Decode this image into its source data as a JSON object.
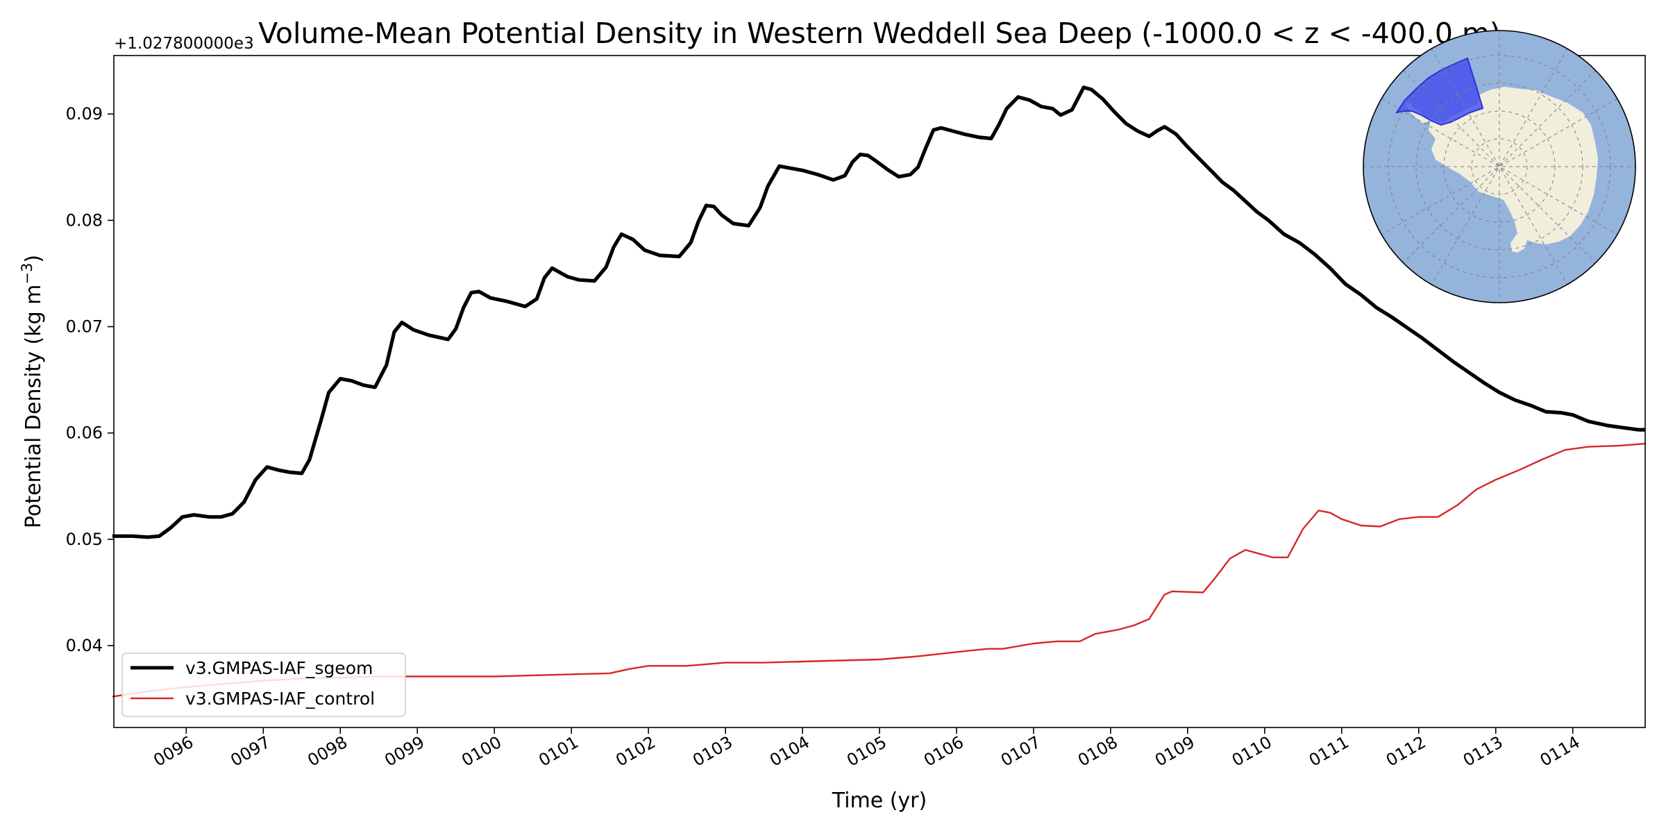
{
  "chart_data": {
    "type": "line",
    "title": "Volume-Mean Potential Density in Western Weddell Sea Deep (-1000.0 < z < -400.0 m)",
    "xlabel": "Time (yr)",
    "ylabel": "Potential Density (kg m",
    "ylabel_sup": "−3",
    "ylabel_close": ")",
    "offset_label": "+1.027800000e3",
    "xlim": [
      95.06,
      114.94
    ],
    "ylim": [
      0.0323,
      0.0955
    ],
    "xticks": [
      {
        "value": 96,
        "label": "0096"
      },
      {
        "value": 97,
        "label": "0097"
      },
      {
        "value": 98,
        "label": "0098"
      },
      {
        "value": 99,
        "label": "0099"
      },
      {
        "value": 100,
        "label": "0100"
      },
      {
        "value": 101,
        "label": "0101"
      },
      {
        "value": 102,
        "label": "0102"
      },
      {
        "value": 103,
        "label": "0103"
      },
      {
        "value": 104,
        "label": "0104"
      },
      {
        "value": 105,
        "label": "0105"
      },
      {
        "value": 106,
        "label": "0106"
      },
      {
        "value": 107,
        "label": "0107"
      },
      {
        "value": 108,
        "label": "0108"
      },
      {
        "value": 109,
        "label": "0109"
      },
      {
        "value": 110,
        "label": "0110"
      },
      {
        "value": 111,
        "label": "0111"
      },
      {
        "value": 112,
        "label": "0112"
      },
      {
        "value": 113,
        "label": "0113"
      },
      {
        "value": 114,
        "label": "0114"
      }
    ],
    "yticks": [
      {
        "value": 0.04,
        "label": "0.04"
      },
      {
        "value": 0.05,
        "label": "0.05"
      },
      {
        "value": 0.06,
        "label": "0.06"
      },
      {
        "value": 0.07,
        "label": "0.07"
      },
      {
        "value": 0.08,
        "label": "0.08"
      },
      {
        "value": 0.09,
        "label": "0.09"
      }
    ],
    "legend_position": "lower-left",
    "grid": false,
    "series": [
      {
        "name": "v3.GMPAS-IAF_sgeom",
        "color": "#000000",
        "x": [
          95.04,
          95.3,
          95.5,
          95.65,
          95.8,
          95.95,
          96.1,
          96.3,
          96.45,
          96.6,
          96.75,
          96.9,
          97.05,
          97.2,
          97.35,
          97.5,
          97.6,
          97.75,
          97.85,
          98.0,
          98.15,
          98.3,
          98.45,
          98.6,
          98.7,
          98.8,
          98.95,
          99.15,
          99.4,
          99.5,
          99.6,
          99.7,
          99.8,
          99.95,
          100.15,
          100.4,
          100.55,
          100.65,
          100.75,
          100.85,
          100.95,
          101.1,
          101.3,
          101.45,
          101.55,
          101.65,
          101.8,
          101.95,
          102.15,
          102.4,
          102.55,
          102.65,
          102.75,
          102.85,
          102.95,
          103.1,
          103.3,
          103.45,
          103.55,
          103.7,
          103.85,
          104.0,
          104.2,
          104.4,
          104.55,
          104.65,
          104.75,
          104.85,
          104.95,
          105.1,
          105.25,
          105.4,
          105.5,
          105.6,
          105.7,
          105.8,
          105.95,
          106.1,
          106.3,
          106.45,
          106.55,
          106.65,
          106.8,
          106.95,
          107.1,
          107.25,
          107.35,
          107.5,
          107.65,
          107.75,
          107.9,
          108.05,
          108.2,
          108.35,
          108.5,
          108.6,
          108.7,
          108.85,
          109.0,
          109.15,
          109.3,
          109.45,
          109.6,
          109.75,
          109.9,
          110.05,
          110.25,
          110.45,
          110.65,
          110.85,
          111.05,
          111.25,
          111.45,
          111.65,
          111.85,
          112.05,
          112.25,
          112.45,
          112.65,
          112.85,
          113.05,
          113.25,
          113.45,
          113.65,
          113.85,
          114.0,
          114.2,
          114.45,
          114.65,
          114.85,
          114.94
        ],
        "y": [
          0.0503,
          0.0503,
          0.0502,
          0.0503,
          0.0511,
          0.0521,
          0.0523,
          0.0521,
          0.0521,
          0.0524,
          0.0535,
          0.0556,
          0.0568,
          0.0565,
          0.0563,
          0.0562,
          0.0575,
          0.0612,
          0.0638,
          0.0651,
          0.0649,
          0.0645,
          0.0643,
          0.0664,
          0.0695,
          0.0704,
          0.0697,
          0.0692,
          0.0688,
          0.0698,
          0.0718,
          0.0732,
          0.0733,
          0.0727,
          0.0724,
          0.0719,
          0.0726,
          0.0746,
          0.0755,
          0.0751,
          0.0747,
          0.0744,
          0.0743,
          0.0756,
          0.0775,
          0.0787,
          0.0782,
          0.0772,
          0.0767,
          0.0766,
          0.0779,
          0.0799,
          0.0814,
          0.0813,
          0.0805,
          0.0797,
          0.0795,
          0.0812,
          0.0832,
          0.0851,
          0.0849,
          0.0847,
          0.0843,
          0.0838,
          0.0842,
          0.0855,
          0.0862,
          0.0861,
          0.0856,
          0.0848,
          0.0841,
          0.0843,
          0.085,
          0.0868,
          0.0885,
          0.0887,
          0.0884,
          0.0881,
          0.0878,
          0.0877,
          0.089,
          0.0905,
          0.0916,
          0.0913,
          0.0907,
          0.0905,
          0.0899,
          0.0904,
          0.0925,
          0.0923,
          0.0914,
          0.0902,
          0.0891,
          0.0884,
          0.0879,
          0.0884,
          0.0888,
          0.0881,
          0.0869,
          0.0858,
          0.0847,
          0.0836,
          0.0828,
          0.0818,
          0.0808,
          0.08,
          0.0787,
          0.0779,
          0.0768,
          0.0755,
          0.074,
          0.073,
          0.0718,
          0.0709,
          0.0699,
          0.0689,
          0.0678,
          0.0667,
          0.0657,
          0.0647,
          0.0638,
          0.0631,
          0.0626,
          0.062,
          0.0619,
          0.0617,
          0.0611,
          0.0607,
          0.0605,
          0.0603,
          0.0603
        ]
      },
      {
        "name": "v3.GMPAS-IAF_control",
        "color": "#d62728",
        "x": [
          95.04,
          95.5,
          96.0,
          96.5,
          97.0,
          97.5,
          98.0,
          98.5,
          99.0,
          99.5,
          100.0,
          100.5,
          101.0,
          101.5,
          101.75,
          102.0,
          102.5,
          103.0,
          103.5,
          104.0,
          104.5,
          105.0,
          105.5,
          106.0,
          106.4,
          106.6,
          107.0,
          107.3,
          107.6,
          107.8,
          108.1,
          108.3,
          108.5,
          108.7,
          108.8,
          109.2,
          109.35,
          109.55,
          109.75,
          110.1,
          110.3,
          110.5,
          110.7,
          110.85,
          111.0,
          111.25,
          111.5,
          111.75,
          112.0,
          112.25,
          112.5,
          112.75,
          113.0,
          113.3,
          113.6,
          113.9,
          114.2,
          114.6,
          114.94
        ],
        "y": [
          0.0352,
          0.0357,
          0.0361,
          0.0364,
          0.0367,
          0.0369,
          0.037,
          0.0371,
          0.0371,
          0.0371,
          0.0371,
          0.0372,
          0.0373,
          0.0374,
          0.0378,
          0.0381,
          0.0381,
          0.0384,
          0.0384,
          0.0385,
          0.0386,
          0.0387,
          0.039,
          0.0394,
          0.0397,
          0.0397,
          0.0402,
          0.0404,
          0.0404,
          0.0411,
          0.0415,
          0.0419,
          0.0425,
          0.0448,
          0.0451,
          0.045,
          0.0463,
          0.0482,
          0.049,
          0.0483,
          0.0483,
          0.051,
          0.0527,
          0.0525,
          0.0519,
          0.0513,
          0.0512,
          0.0519,
          0.0521,
          0.0521,
          0.0532,
          0.0547,
          0.0556,
          0.0565,
          0.0575,
          0.0584,
          0.0587,
          0.0588,
          0.059
        ]
      }
    ]
  },
  "inset_map": {
    "ocean_color": "#94b4dc",
    "land_color": "#f1efdc",
    "region_color": "#3f47ee"
  }
}
